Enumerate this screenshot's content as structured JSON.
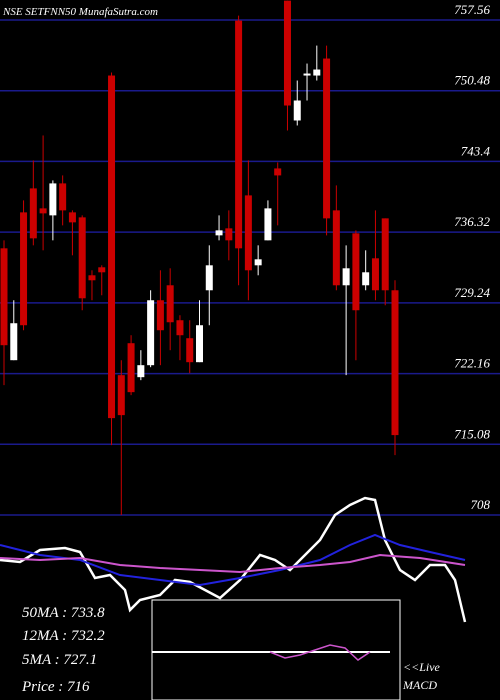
{
  "chart_data": {
    "type": "candlestick",
    "title": "NSE SETFNN50 MunafaSutra.com",
    "ylim": [
      708,
      757.56
    ],
    "yticks": [
      757.56,
      750.48,
      743.4,
      736.32,
      729.24,
      722.16,
      715.08,
      708
    ],
    "grid": true,
    "up_color": "#ffffff",
    "down_color": "#cc0000",
    "grid_color": "#1a1a8c",
    "open": [
      734.7,
      723.5,
      738.3,
      740.7,
      738.7,
      738.0,
      741.2,
      738.3,
      737.8,
      732.0,
      732.8,
      752.0,
      722.0,
      725.2,
      721.8,
      723.0,
      729.5,
      731.0,
      727.5,
      725.7,
      723.3,
      730.5,
      736.0,
      736.7,
      757.5,
      740.0,
      733.0,
      735.5,
      742.7,
      759.5,
      747.5,
      752.0,
      752.0,
      753.7,
      738.5,
      731.0,
      736.2,
      731.0,
      733.7,
      737.7,
      730.5
    ],
    "high": [
      735.5,
      729.5,
      739.5,
      743.5,
      746.0,
      741.5,
      742.0,
      738.5,
      738.0,
      732.5,
      733.0,
      752.3,
      723.5,
      726.0,
      724.5,
      730.5,
      732.5,
      732.7,
      728.0,
      727.5,
      729.5,
      735.0,
      738.0,
      738.5,
      758.0,
      743.5,
      735.0,
      739.5,
      743.3,
      759.5,
      751.5,
      753.2,
      755.0,
      755.0,
      741.0,
      735.0,
      736.5,
      734.5,
      738.5,
      737.7,
      731.5
    ],
    "low": [
      721.0,
      723.5,
      726.5,
      735.0,
      734.5,
      735.5,
      737.0,
      734.0,
      728.5,
      729.5,
      730.0,
      715.0,
      708.0,
      720.0,
      721.5,
      722.8,
      723.0,
      724.5,
      723.5,
      722.2,
      723.3,
      727.0,
      735.5,
      733.5,
      731.0,
      729.5,
      732.0,
      735.5,
      737.0,
      746.5,
      747.0,
      749.5,
      751.5,
      736.0,
      730.5,
      722.0,
      723.5,
      730.5,
      729.5,
      729.0,
      714.0
    ],
    "close": [
      725.0,
      727.2,
      727.0,
      735.7,
      738.2,
      741.2,
      738.5,
      737.3,
      729.7,
      731.5,
      732.3,
      717.7,
      718.0,
      720.3,
      723.0,
      729.5,
      726.5,
      727.3,
      726.0,
      723.3,
      727.0,
      733.0,
      736.5,
      735.5,
      734.7,
      732.5,
      733.6,
      738.7,
      742.0,
      749.0,
      749.5,
      752.2,
      752.6,
      737.7,
      731.0,
      732.7,
      728.5,
      732.3,
      730.5,
      730.5,
      716.0
    ],
    "indicator": {
      "ylim": [
        0,
        150
      ],
      "series": [
        {
          "color": "#ffffff",
          "x": [
            0,
            20,
            40,
            65,
            80,
            95,
            110,
            125,
            130,
            140,
            160,
            175,
            190,
            205,
            220,
            240,
            260,
            275,
            290,
            305,
            320,
            335,
            350,
            365,
            375,
            385,
            400,
            415,
            430,
            445,
            455,
            465
          ],
          "values": [
            80,
            78,
            90,
            92,
            88,
            62,
            65,
            50,
            30,
            40,
            45,
            60,
            58,
            50,
            42,
            60,
            85,
            80,
            70,
            85,
            100,
            125,
            135,
            142,
            140,
            100,
            70,
            60,
            75,
            75,
            60,
            18
          ]
        },
        {
          "color": "#2222dd",
          "x": [
            0,
            20,
            40,
            80,
            120,
            160,
            200,
            240,
            280,
            320,
            350,
            375,
            400,
            430,
            465
          ],
          "values": [
            95,
            90,
            85,
            80,
            65,
            60,
            55,
            62,
            70,
            80,
            95,
            105,
            95,
            88,
            80
          ]
        },
        {
          "color": "#cc55cc",
          "x": [
            0,
            40,
            80,
            120,
            160,
            200,
            240,
            280,
            320,
            350,
            380,
            420,
            465
          ],
          "values": [
            82,
            80,
            82,
            75,
            72,
            70,
            68,
            72,
            75,
            78,
            85,
            82,
            75
          ]
        }
      ]
    },
    "labels": [
      "50MA : 733.8",
      "12MA : 732.2",
      "5MA : 727.1",
      "Price   : 716"
    ],
    "live": "<<Live",
    "macd": "MACD"
  }
}
